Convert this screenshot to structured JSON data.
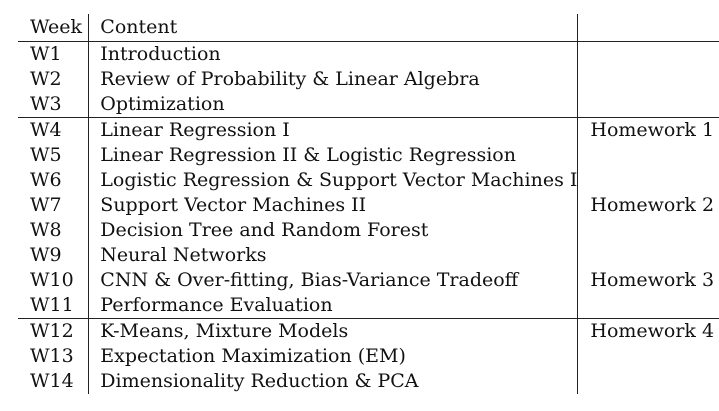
{
  "table": {
    "headers": {
      "week": "Week",
      "content": "Content",
      "homework": ""
    },
    "groups": [
      {
        "rows": [
          {
            "week": "W1",
            "content": "Introduction",
            "homework": ""
          },
          {
            "week": "W2",
            "content": "Review of Probability & Linear Algebra",
            "homework": ""
          },
          {
            "week": "W3",
            "content": "Optimization",
            "homework": ""
          }
        ]
      },
      {
        "rows": [
          {
            "week": "W4",
            "content": "Linear Regression I",
            "homework": "Homework 1"
          },
          {
            "week": "W5",
            "content": "Linear Regression II & Logistic Regression",
            "homework": ""
          },
          {
            "week": "W6",
            "content": "Logistic Regression & Support Vector Machines I",
            "homework": ""
          },
          {
            "week": "W7",
            "content": "Support Vector Machines II",
            "homework": "Homework 2"
          },
          {
            "week": "W8",
            "content": "Decision Tree and Random Forest",
            "homework": ""
          },
          {
            "week": "W9",
            "content": "Neural Networks",
            "homework": ""
          },
          {
            "week": "W10",
            "content": "CNN & Over-fitting, Bias-Variance Tradeoff",
            "homework": "Homework 3"
          },
          {
            "week": "W11",
            "content": "Performance Evaluation",
            "homework": ""
          }
        ]
      },
      {
        "rows": [
          {
            "week": "W12",
            "content": "K-Means, Mixture Models",
            "homework": "Homework 4"
          },
          {
            "week": "W13",
            "content": "Expectation Maximization (EM)",
            "homework": ""
          },
          {
            "week": "W14",
            "content": "Dimensionality Reduction & PCA",
            "homework": ""
          }
        ]
      }
    ]
  }
}
